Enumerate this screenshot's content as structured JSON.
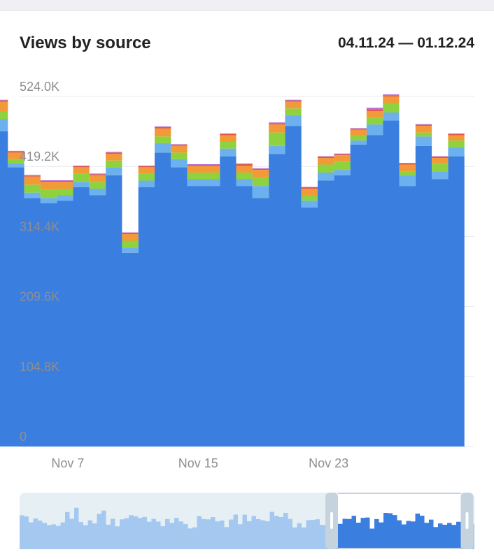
{
  "header": {
    "title": "Views by source",
    "date_range": "04.11.24 — 01.12.24"
  },
  "colors": {
    "primary": "#3A7FE0",
    "secondary": "#6CB1EE",
    "green": "#8ED23E",
    "orange": "#F39A38",
    "red": "#E2574C",
    "purple": "#B96AC9",
    "grid": "#e8eaee",
    "navigator_bg": "#e6f0f4",
    "navigator_area": "#a5c8f0"
  },
  "chart_data": {
    "type": "area",
    "stacked": true,
    "step": true,
    "title": "Views by source",
    "xlabel": "",
    "ylabel": "",
    "ylim": [
      0,
      524000
    ],
    "y_ticks": [
      "0",
      "104.8K",
      "209.6K",
      "314.4K",
      "419.2K",
      "524.0K"
    ],
    "x_tick_labels": [
      {
        "date": "Nov 7",
        "label": "Nov 7"
      },
      {
        "date": "Nov 15",
        "label": "Nov 15"
      },
      {
        "date": "Nov 23",
        "label": "Nov 23"
      }
    ],
    "x": [
      "Nov 3",
      "Nov 4",
      "Nov 5",
      "Nov 6",
      "Nov 7",
      "Nov 8",
      "Nov 9",
      "Nov 10",
      "Nov 11",
      "Nov 12",
      "Nov 13",
      "Nov 14",
      "Nov 15",
      "Nov 16",
      "Nov 17",
      "Nov 18",
      "Nov 19",
      "Nov 20",
      "Nov 21",
      "Nov 22",
      "Nov 23",
      "Nov 24",
      "Nov 25",
      "Nov 26",
      "Nov 27",
      "Nov 28",
      "Nov 29",
      "Nov 30",
      "Dec 1"
    ],
    "series": [
      {
        "color": "#3A7FE0",
        "values": [
          472000,
          418000,
          372000,
          364000,
          368000,
          388000,
          376000,
          406000,
          290000,
          388000,
          440000,
          418000,
          390000,
          390000,
          434000,
          390000,
          372000,
          438000,
          480000,
          358000,
          398000,
          406000,
          452000,
          466000,
          488000,
          390000,
          450000,
          400000,
          434000
        ]
      },
      {
        "color": "#6CB1EE",
        "values": [
          18000,
          6000,
          8000,
          8000,
          8000,
          8000,
          10000,
          12000,
          8000,
          10000,
          14000,
          12000,
          10000,
          10000,
          12000,
          10000,
          18000,
          12000,
          16000,
          10000,
          12000,
          8000,
          6000,
          16000,
          12000,
          16000,
          14000,
          12000,
          14000
        ]
      },
      {
        "color": "#8ED23E",
        "values": [
          12000,
          6000,
          12000,
          12000,
          10000,
          12000,
          10000,
          10000,
          10000,
          10000,
          10000,
          10000,
          10000,
          10000,
          10000,
          10000,
          12000,
          20000,
          10000,
          8000,
          12000,
          12000,
          8000,
          10000,
          14000,
          6000,
          6000,
          12000,
          10000
        ]
      },
      {
        "color": "#F39A38",
        "values": [
          14000,
          10000,
          12000,
          12000,
          10000,
          10000,
          10000,
          10000,
          10000,
          10000,
          12000,
          10000,
          10000,
          10000,
          10000,
          10000,
          12000,
          12000,
          10000,
          10000,
          10000,
          10000,
          8000,
          10000,
          10000,
          10000,
          10000,
          8000,
          8000
        ]
      },
      {
        "color": "#E2574C",
        "values": [
          2000,
          1500,
          1500,
          1500,
          1500,
          1500,
          1500,
          2000,
          1500,
          1500,
          2000,
          1500,
          1500,
          1500,
          1500,
          2500,
          1500,
          2000,
          1500,
          1500,
          1500,
          1500,
          1500,
          2500,
          1500,
          1500,
          1500,
          1500,
          1500
        ]
      },
      {
        "color": "#B96AC9",
        "values": [
          1000,
          1000,
          1000,
          1000,
          1000,
          1000,
          1000,
          1000,
          1000,
          1000,
          1000,
          1000,
          1000,
          1000,
          1000,
          1000,
          1000,
          1000,
          1500,
          1000,
          1000,
          1000,
          1000,
          2500,
          1500,
          1000,
          1000,
          1000,
          1000
        ]
      }
    ]
  },
  "navigator": {
    "selection": [
      0.7,
      0.97
    ]
  }
}
